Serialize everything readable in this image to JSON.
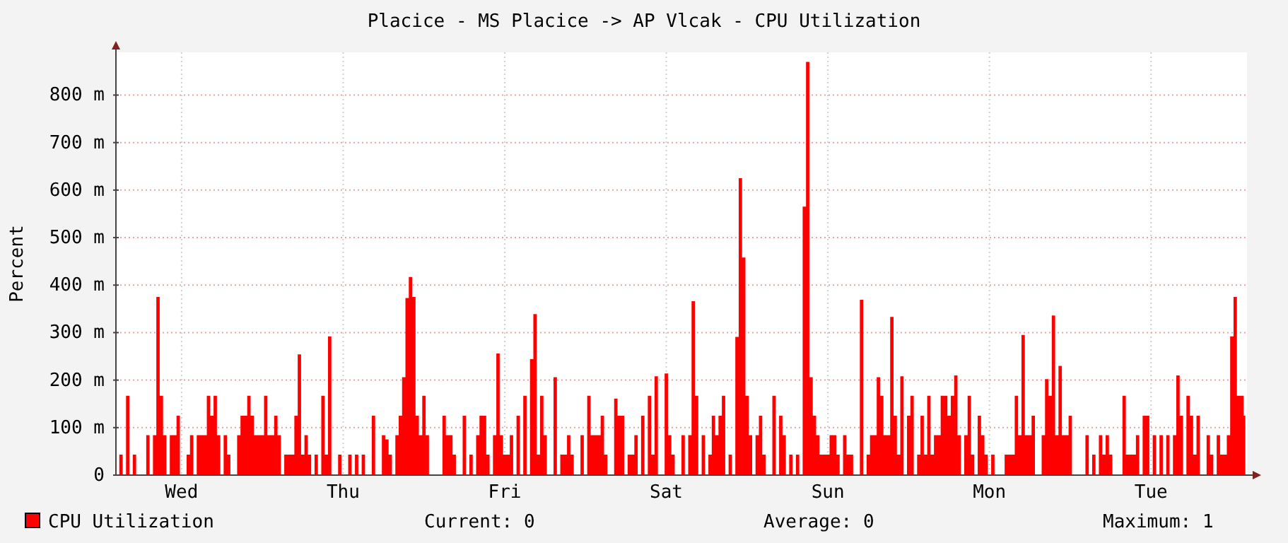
{
  "chart_data": {
    "type": "area",
    "title": "Placice - MS Placice -> AP Vlcak - CPU Utilization",
    "ylabel": "Percent",
    "ylim": [
      0,
      890
    ],
    "yticks": [
      0,
      {
        "value": 100,
        "label": "100 m"
      },
      {
        "value": 200,
        "label": "200 m"
      },
      {
        "value": 300,
        "label": "300 m"
      },
      {
        "value": 400,
        "label": "400 m"
      },
      {
        "value": 500,
        "label": "500 m"
      },
      {
        "value": 600,
        "label": "600 m"
      },
      {
        "value": 700,
        "label": "700 m"
      },
      {
        "value": 800,
        "label": "800 m"
      }
    ],
    "grid": true,
    "legend": "bottom left",
    "annotations": [
      "Current: 0",
      "Average: 0",
      "Maximum: 1"
    ],
    "categories": [
      null,
      null,
      null,
      null,
      null,
      null,
      null,
      null,
      null,
      null,
      null,
      null,
      null,
      null,
      null,
      null,
      null,
      null,
      null,
      "Wed",
      null,
      null,
      null,
      null,
      null,
      null,
      null,
      null,
      null,
      null,
      null,
      null,
      null,
      null,
      null,
      null,
      null,
      null,
      null,
      null,
      null,
      null,
      null,
      null,
      null,
      null,
      null,
      null,
      null,
      null,
      null,
      null,
      null,
      null,
      null,
      null,
      null,
      null,
      null,
      null,
      null,
      null,
      null,
      null,
      null,
      null,
      null,
      "Thu",
      null,
      null,
      null,
      null,
      null,
      null,
      null,
      null,
      null,
      null,
      null,
      null,
      null,
      null,
      null,
      null,
      null,
      null,
      null,
      null,
      null,
      null,
      null,
      null,
      null,
      null,
      null,
      null,
      null,
      null,
      null,
      null,
      null,
      null,
      null,
      null,
      null,
      null,
      null,
      null,
      null,
      null,
      null,
      null,
      null,
      null,
      null,
      "Fri",
      null,
      null,
      null,
      null,
      null,
      null,
      null,
      null,
      null,
      null,
      null,
      null,
      null,
      null,
      null,
      null,
      null,
      null,
      null,
      null,
      null,
      null,
      null,
      null,
      null,
      null,
      null,
      null,
      null,
      null,
      null,
      null,
      null,
      null,
      null,
      null,
      null,
      null,
      null,
      null,
      null,
      null,
      null,
      null,
      null,
      null,
      null,
      "Sat",
      null,
      null,
      null,
      null,
      null,
      null,
      null,
      null,
      null,
      null,
      null,
      null,
      null,
      null,
      null,
      null,
      null,
      null,
      null,
      null,
      null,
      null,
      null,
      null,
      null,
      null,
      null,
      null,
      null,
      null,
      null,
      null,
      null,
      null,
      null,
      null,
      null,
      null,
      null,
      null,
      null,
      null,
      null,
      null,
      null,
      null,
      null,
      "Sun",
      null,
      null,
      null,
      null,
      null,
      null,
      null,
      null,
      null,
      null,
      null,
      null,
      null,
      null,
      null,
      null,
      null,
      null,
      null,
      null,
      null,
      null,
      null,
      null,
      null,
      null,
      null,
      null,
      null,
      null,
      null,
      null,
      null,
      null,
      null,
      null,
      null,
      null,
      null,
      null,
      null,
      null,
      null,
      null,
      null,
      null,
      null,
      "Mon",
      null,
      null,
      null,
      null,
      null,
      null,
      null,
      null,
      null,
      null,
      null,
      null,
      null,
      null,
      null,
      null,
      null,
      null,
      null,
      null,
      null,
      null,
      null,
      null,
      null,
      null,
      null,
      null,
      null,
      null,
      null,
      null,
      null,
      null,
      null,
      null,
      null,
      null,
      null,
      null,
      null,
      null,
      null,
      null,
      null,
      null,
      null,
      "Tue",
      null,
      null,
      null,
      null,
      null,
      null,
      null,
      null,
      null,
      null,
      null,
      null,
      null,
      null,
      null,
      null,
      null,
      null,
      null,
      null,
      null,
      null,
      null,
      null,
      null,
      null,
      null,
      null
    ],
    "series": [
      {
        "name": "CPU Utilization",
        "color": "#ff0000",
        "values": [
          0,
          43,
          0,
          167,
          0,
          43,
          0,
          0,
          0,
          84,
          0,
          84,
          375,
          167,
          84,
          0,
          84,
          84,
          125,
          0,
          0,
          43,
          84,
          0,
          84,
          84,
          84,
          167,
          125,
          167,
          84,
          0,
          84,
          43,
          0,
          0,
          84,
          125,
          125,
          167,
          125,
          84,
          84,
          84,
          167,
          84,
          84,
          125,
          84,
          0,
          43,
          43,
          43,
          125,
          254,
          43,
          84,
          43,
          0,
          43,
          0,
          167,
          43,
          292,
          0,
          0,
          43,
          0,
          0,
          43,
          0,
          43,
          0,
          43,
          0,
          0,
          125,
          0,
          0,
          84,
          75,
          43,
          0,
          84,
          125,
          206,
          373,
          417,
          375,
          125,
          84,
          167,
          84,
          0,
          0,
          0,
          0,
          125,
          84,
          84,
          43,
          0,
          0,
          125,
          0,
          43,
          0,
          84,
          125,
          125,
          43,
          0,
          84,
          256,
          84,
          43,
          43,
          84,
          0,
          125,
          0,
          167,
          0,
          244,
          339,
          43,
          167,
          84,
          0,
          0,
          206,
          0,
          43,
          43,
          84,
          43,
          0,
          0,
          84,
          0,
          167,
          84,
          84,
          84,
          125,
          43,
          0,
          0,
          161,
          125,
          125,
          0,
          43,
          43,
          84,
          0,
          125,
          0,
          167,
          43,
          208,
          0,
          0,
          214,
          84,
          43,
          0,
          0,
          84,
          0,
          84,
          366,
          167,
          0,
          84,
          0,
          43,
          125,
          84,
          125,
          167,
          0,
          43,
          0,
          291,
          625,
          458,
          167,
          84,
          0,
          84,
          125,
          43,
          0,
          0,
          167,
          0,
          125,
          84,
          0,
          43,
          0,
          43,
          0,
          565,
          870,
          206,
          125,
          84,
          43,
          43,
          43,
          84,
          84,
          43,
          0,
          84,
          43,
          43,
          0,
          0,
          369,
          0,
          43,
          84,
          84,
          206,
          167,
          84,
          84,
          333,
          125,
          43,
          208,
          0,
          125,
          167,
          0,
          43,
          125,
          43,
          167,
          43,
          84,
          84,
          167,
          167,
          125,
          167,
          210,
          84,
          0,
          84,
          167,
          43,
          0,
          125,
          84,
          43,
          0,
          43,
          0,
          0,
          0,
          43,
          43,
          43,
          167,
          84,
          295,
          84,
          84,
          125,
          0,
          0,
          84,
          202,
          167,
          336,
          84,
          230,
          84,
          84,
          125,
          0,
          0,
          0,
          0,
          84,
          0,
          43,
          0,
          84,
          43,
          84,
          43,
          0,
          0,
          0,
          167,
          43,
          43,
          43,
          84,
          0,
          125,
          125,
          0,
          84,
          0,
          84,
          0,
          84,
          0,
          84,
          210,
          125,
          0,
          167,
          125,
          43,
          125,
          0,
          0,
          84,
          43,
          0,
          84,
          43,
          43,
          84,
          292,
          375,
          167,
          167,
          125
        ]
      }
    ]
  }
}
